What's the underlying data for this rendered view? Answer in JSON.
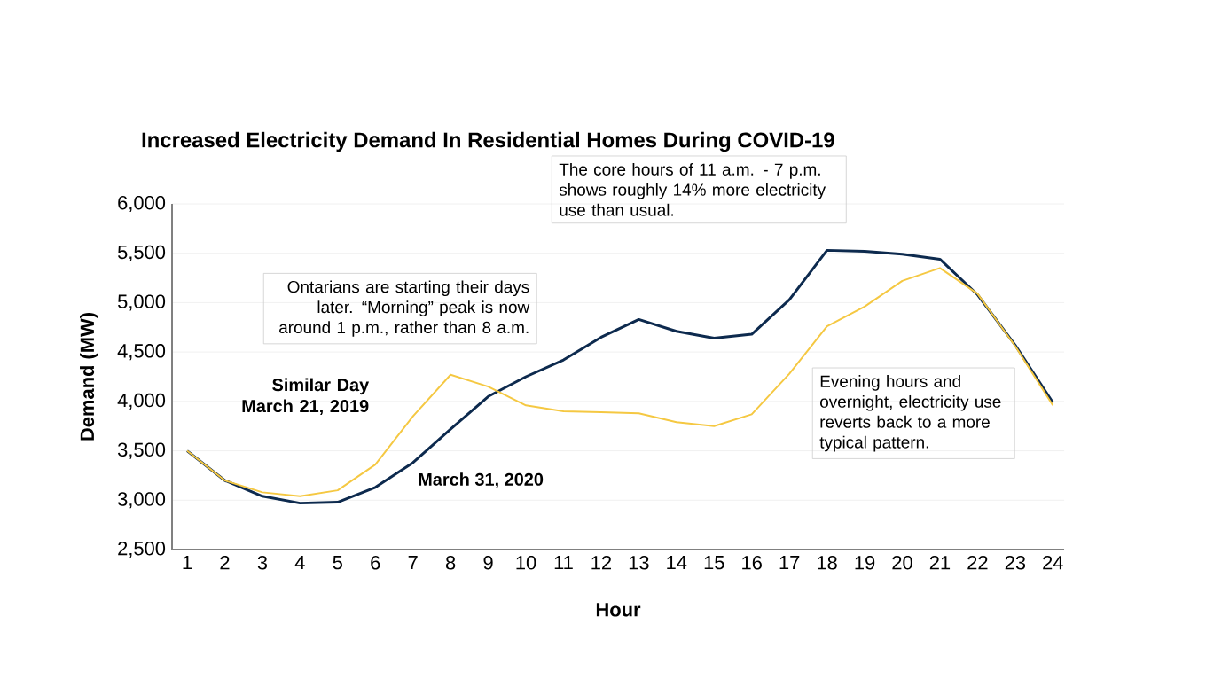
{
  "chart_data": {
    "type": "line",
    "title": "Increased Electricity Demand In Residential Homes During COVID-19",
    "xlabel": "Hour",
    "ylabel": "Demand (MW)",
    "categories": [
      "1",
      "2",
      "3",
      "4",
      "5",
      "6",
      "7",
      "8",
      "9",
      "10",
      "11",
      "12",
      "13",
      "14",
      "15",
      "16",
      "17",
      "18",
      "19",
      "20",
      "21",
      "22",
      "23",
      "24"
    ],
    "series": [
      {
        "name": "March 31, 2020",
        "color": "#0d2a4e",
        "values": [
          3500,
          3200,
          3040,
          2970,
          2980,
          3130,
          3380,
          3720,
          4050,
          4250,
          4420,
          4650,
          4830,
          4710,
          4640,
          4680,
          5030,
          5530,
          5520,
          5490,
          5440,
          5080,
          4570,
          3990
        ]
      },
      {
        "name": "Similar Day March 21, 2019",
        "color": "#f5c842",
        "values": [
          3500,
          3200,
          3080,
          3040,
          3100,
          3360,
          3850,
          4270,
          4150,
          3960,
          3900,
          3890,
          3880,
          3790,
          3750,
          3870,
          4280,
          4760,
          4960,
          5220,
          5350,
          5090,
          4560,
          3960
        ]
      }
    ],
    "ylim": [
      2500,
      6000
    ],
    "yticks": [
      {
        "value": 2500,
        "label": "2,500"
      },
      {
        "value": 3000,
        "label": "3,000"
      },
      {
        "value": 3500,
        "label": "3,500"
      },
      {
        "value": 4000,
        "label": "4,000"
      },
      {
        "value": 4500,
        "label": "4,500"
      },
      {
        "value": 5000,
        "label": "5,000"
      },
      {
        "value": 5500,
        "label": "5,500"
      },
      {
        "value": 6000,
        "label": "6,000"
      }
    ],
    "grid": "y",
    "legend": false,
    "annotations": [
      "Ontarians are starting their days later. “Morning” peak is now around 1 p.m., rather than 8 a.m.",
      "The core hours of 11 a.m. - 7 p.m. shows roughly 14% more electricity use than usual.",
      "Evening hours and overnight, electricity use reverts back to a more typical pattern."
    ]
  }
}
